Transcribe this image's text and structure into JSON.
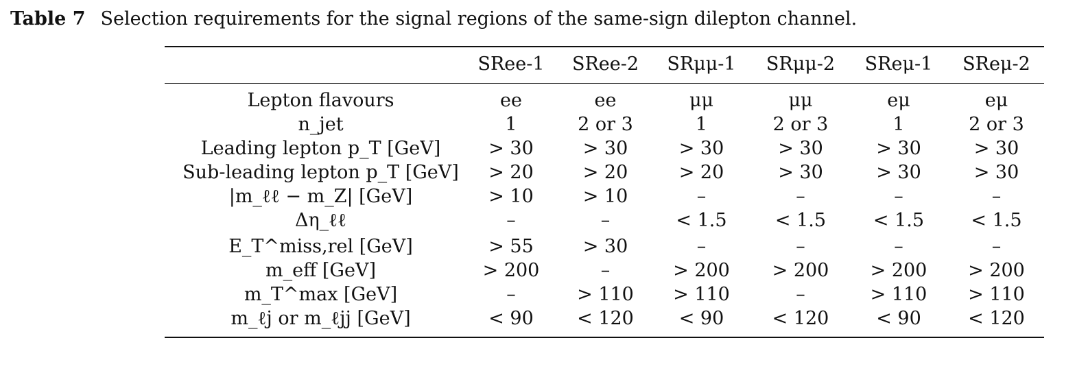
{
  "caption": {
    "label": "Table 7",
    "text": "Selection requirements for the signal regions of the same-sign dilepton channel."
  },
  "table": {
    "columns": [
      "SRee-1",
      "SRee-2",
      "SRμμ-1",
      "SRμμ-2",
      "SReμ-1",
      "SReμ-2"
    ],
    "rows": [
      {
        "label": "Lepton flavours",
        "values": [
          "ee",
          "ee",
          "μμ",
          "μμ",
          "eμ",
          "eμ"
        ]
      },
      {
        "label": "n_jet",
        "values": [
          "1",
          "2 or 3",
          "1",
          "2 or 3",
          "1",
          "2 or 3"
        ]
      },
      {
        "label": "Leading lepton p_T [GeV]",
        "values": [
          "> 30",
          "> 30",
          "> 30",
          "> 30",
          "> 30",
          "> 30"
        ]
      },
      {
        "label": "Sub-leading lepton p_T [GeV]",
        "values": [
          "> 20",
          "> 20",
          "> 20",
          "> 30",
          "> 30",
          "> 30"
        ]
      },
      {
        "label": "|m_ℓℓ − m_Z| [GeV]",
        "values": [
          "> 10",
          "> 10",
          "–",
          "–",
          "–",
          "–"
        ]
      },
      {
        "label": "Δη_ℓℓ",
        "values": [
          "–",
          "–",
          "< 1.5",
          "< 1.5",
          "< 1.5",
          "< 1.5"
        ]
      },
      {
        "label": "E_T^miss,rel [GeV]",
        "values": [
          "> 55",
          "> 30",
          "–",
          "–",
          "–",
          "–"
        ]
      },
      {
        "label": "m_eff [GeV]",
        "values": [
          "> 200",
          "–",
          "> 200",
          "> 200",
          "> 200",
          "> 200"
        ]
      },
      {
        "label": "m_T^max [GeV]",
        "values": [
          "–",
          "> 110",
          "> 110",
          "–",
          "> 110",
          "> 110"
        ]
      },
      {
        "label": "m_ℓj or m_ℓjj [GeV]",
        "values": [
          "< 90",
          "< 120",
          "< 90",
          "< 120",
          "< 90",
          "< 120"
        ]
      }
    ]
  }
}
